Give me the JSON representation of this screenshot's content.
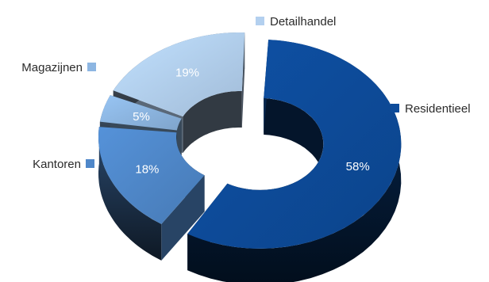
{
  "chart_data": {
    "type": "pie",
    "variant": "3d-donut-exploded",
    "categories": [
      "Residentieel",
      "Kantoren",
      "Magazijnen",
      "Detailhandel"
    ],
    "values": [
      58,
      18,
      5,
      19
    ],
    "labels": [
      "58%",
      "18%",
      "5%",
      "19%"
    ],
    "colors": {
      "Residentieel": "#0d4b9a",
      "Kantoren": "#4f87c9",
      "Magazijnen": "#8db6e2",
      "Detailhandel": "#b3d0ef"
    },
    "legend_placement": "beside-slices",
    "title": ""
  }
}
